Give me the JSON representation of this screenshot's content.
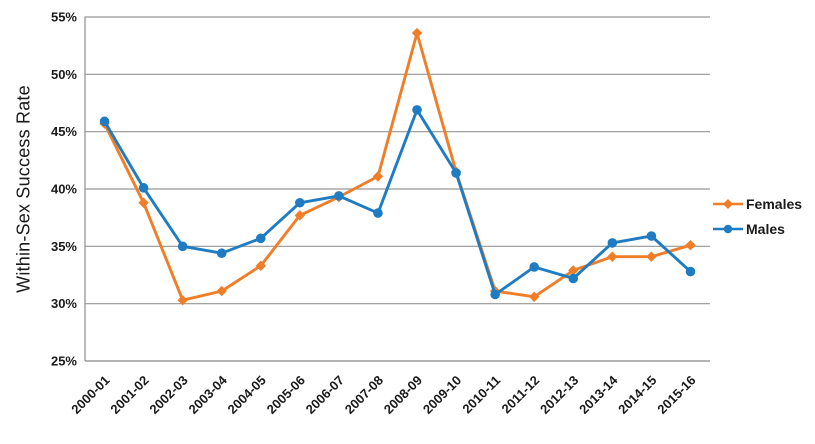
{
  "chart_data": {
    "type": "line",
    "title": "",
    "xlabel": "",
    "ylabel": "Within-Sex Success Rate",
    "categories": [
      "2000-01",
      "2001-02",
      "2002-03",
      "2003-04",
      "2004-05",
      "2005-06",
      "2006-07",
      "2007-08",
      "2008-09",
      "2009-10",
      "2010-11",
      "2011-12",
      "2012-13",
      "2013-14",
      "2014-15",
      "2015-16"
    ],
    "series": [
      {
        "name": "Females",
        "color": "#F07E28",
        "marker": "diamond",
        "values": [
          45.7,
          38.8,
          30.3,
          31.1,
          33.3,
          37.7,
          39.3,
          41.1,
          53.6,
          41.5,
          31.1,
          30.6,
          32.9,
          34.1,
          34.1,
          35.1
        ]
      },
      {
        "name": "Males",
        "color": "#1F7CC2",
        "marker": "circle",
        "values": [
          45.9,
          40.1,
          35.0,
          34.4,
          35.7,
          38.8,
          39.4,
          37.9,
          46.9,
          41.4,
          30.8,
          33.2,
          32.2,
          35.3,
          35.9,
          32.8
        ]
      }
    ],
    "ylim": [
      25,
      55
    ],
    "y_tick_step": 5,
    "y_tick_labels": [
      "25%",
      "30%",
      "35%",
      "40%",
      "45%",
      "50%",
      "55%"
    ],
    "x_tick_rotation": -45,
    "grid": "horizontal",
    "legend_position": "right",
    "colors": {
      "background": "#FFFFFF",
      "grid_line": "#969696",
      "axis_line": "#969696",
      "text": "#1A1A1A"
    }
  }
}
